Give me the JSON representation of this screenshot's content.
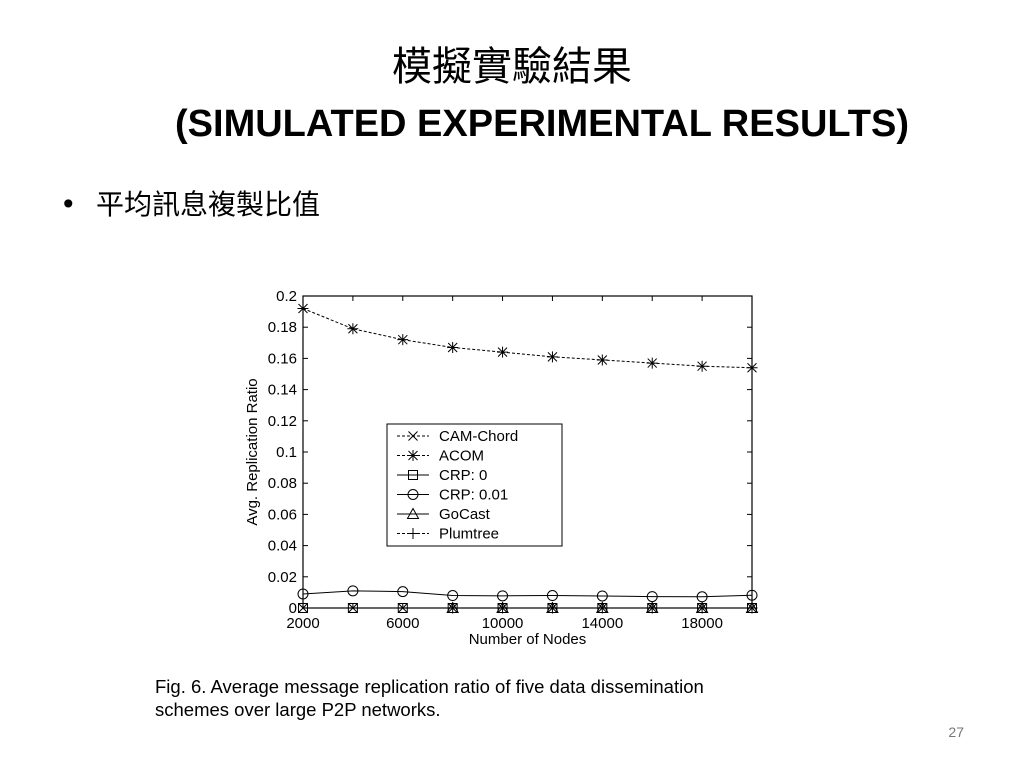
{
  "slide": {
    "title_zh": "模擬實驗結果",
    "title_en": "(SIMULATED EXPERIMENTAL RESULTS)",
    "bullet": "平均訊息複製比值",
    "bullet_marker": "•",
    "caption_line1": "Fig. 6. Average message replication ratio of five data dissemination",
    "caption_line2": "schemes over large P2P networks.",
    "page_number": "27"
  },
  "chart_data": {
    "type": "line",
    "xlabel": "Number of Nodes",
    "ylabel": "Avg. Replication Ratio",
    "xlim": [
      2000,
      20000
    ],
    "ylim": [
      0,
      0.2
    ],
    "xticks": [
      2000,
      6000,
      10000,
      14000,
      18000
    ],
    "yticks": [
      0,
      0.02,
      0.04,
      0.06,
      0.08,
      0.1,
      0.12,
      0.14,
      0.16,
      0.18,
      0.2
    ],
    "x": [
      2000,
      4000,
      6000,
      8000,
      10000,
      12000,
      14000,
      16000,
      18000,
      20000
    ],
    "legend_position": "center-left",
    "series": [
      {
        "name": "CAM-Chord",
        "marker": "x",
        "values": [
          0,
          0,
          0,
          0,
          0,
          0,
          0,
          0,
          0,
          0
        ]
      },
      {
        "name": "ACOM",
        "marker": "star",
        "values": [
          0.192,
          0.179,
          0.172,
          0.167,
          0.164,
          0.161,
          0.159,
          0.157,
          0.155,
          0.154
        ]
      },
      {
        "name": "CRP: 0",
        "marker": "square",
        "values": [
          0,
          0,
          0,
          0,
          0,
          0,
          0,
          0,
          0,
          0
        ]
      },
      {
        "name": "CRP: 0.01",
        "marker": "circle",
        "values": [
          0.009,
          0.011,
          0.0105,
          0.008,
          0.0078,
          0.008,
          0.0077,
          0.0073,
          0.0072,
          0.0082
        ]
      },
      {
        "name": "GoCast",
        "marker": "triangle",
        "values": [
          null,
          null,
          null,
          0,
          0,
          0,
          0,
          0,
          0,
          0
        ]
      },
      {
        "name": "Plumtree",
        "marker": "plus",
        "values": [
          null,
          null,
          null,
          0,
          0,
          0,
          0,
          0,
          0,
          0
        ]
      }
    ]
  }
}
